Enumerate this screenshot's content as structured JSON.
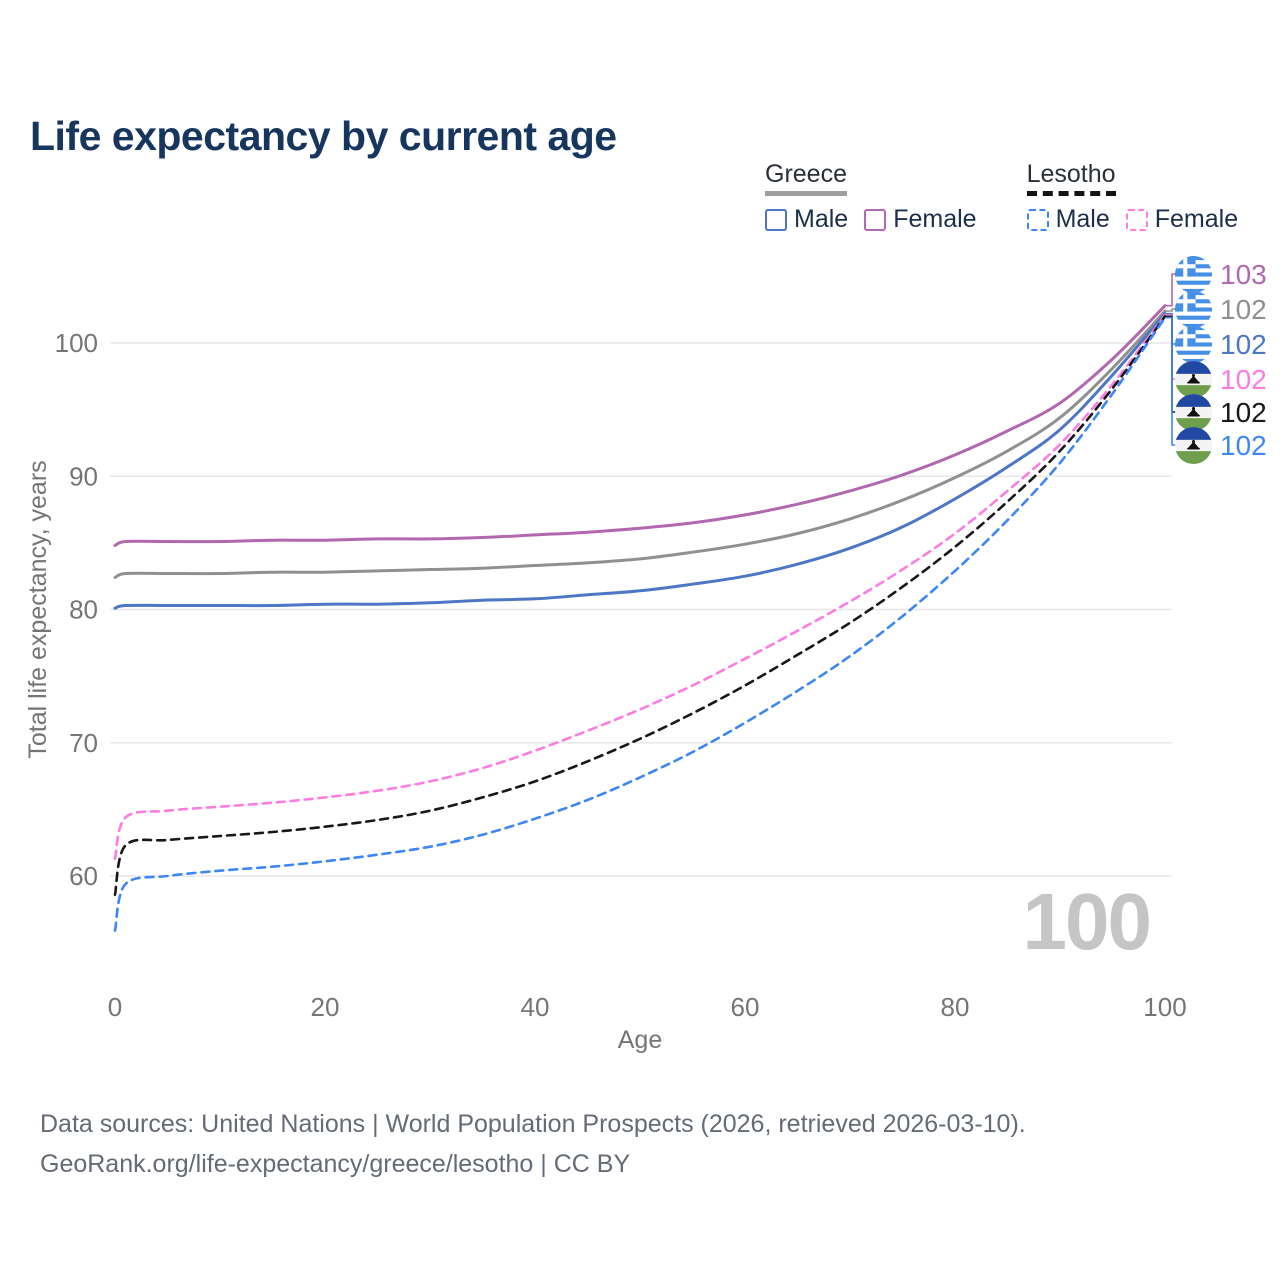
{
  "title": "Life expectancy by current age",
  "legend": {
    "groups": [
      {
        "name": "Greece",
        "line_style": "solid",
        "underline_color": "#9e9e9e",
        "items": [
          {
            "label": "Male",
            "color": "#4d77c4"
          },
          {
            "label": "Female",
            "color": "#b168ae"
          }
        ]
      },
      {
        "name": "Lesotho",
        "line_style": "dashed",
        "underline_color": "#141414",
        "items": [
          {
            "label": "Male",
            "color": "#3d87f5"
          },
          {
            "label": "Female",
            "color": "#fc7ce0"
          }
        ]
      }
    ]
  },
  "chart_data": {
    "type": "line",
    "title": "Life expectancy by current age",
    "xlabel": "Age",
    "ylabel": "Total life expectancy, years",
    "xlim": [
      0,
      100
    ],
    "ylim": [
      55,
      104
    ],
    "x_ticks": [
      0,
      20,
      40,
      60,
      80,
      100
    ],
    "y_ticks": [
      60,
      70,
      80,
      90,
      100
    ],
    "grid": "horizontal-only",
    "legend_position": "top-right",
    "ages": [
      0,
      1,
      5,
      10,
      15,
      20,
      25,
      30,
      35,
      40,
      45,
      50,
      55,
      60,
      65,
      70,
      75,
      80,
      85,
      90,
      95,
      100
    ],
    "series": [
      {
        "name": "Greece Female",
        "country": "Greece",
        "sex": "Female",
        "flag": "greece",
        "color": "#b168ae",
        "dashed": false,
        "end_label": "103",
        "values": [
          84.8,
          85.1,
          85.1,
          85.1,
          85.2,
          85.2,
          85.3,
          85.3,
          85.4,
          85.6,
          85.8,
          86.1,
          86.5,
          87.1,
          87.9,
          88.9,
          90.1,
          91.6,
          93.4,
          95.5,
          98.8,
          102.8
        ]
      },
      {
        "name": "Greece Both Sexes",
        "country": "Greece",
        "sex": "Both",
        "flag": "greece",
        "color": "#909090",
        "dashed": false,
        "end_label": "102",
        "values": [
          82.4,
          82.7,
          82.7,
          82.7,
          82.8,
          82.8,
          82.9,
          83.0,
          83.1,
          83.3,
          83.5,
          83.8,
          84.3,
          84.9,
          85.7,
          86.8,
          88.2,
          89.9,
          91.9,
          94.4,
          98.1,
          102.4
        ]
      },
      {
        "name": "Greece Male",
        "country": "Greece",
        "sex": "Male",
        "flag": "greece",
        "color": "#4d77c4",
        "dashed": false,
        "end_label": "102",
        "values": [
          80.1,
          80.3,
          80.3,
          80.3,
          80.3,
          80.4,
          80.4,
          80.5,
          80.7,
          80.8,
          81.1,
          81.4,
          81.9,
          82.5,
          83.4,
          84.6,
          86.2,
          88.3,
          90.7,
          93.5,
          97.6,
          102.2
        ]
      },
      {
        "name": "Lesotho Female",
        "country": "Lesotho",
        "sex": "Female",
        "flag": "lesotho",
        "color": "#fc7ce0",
        "dashed": true,
        "end_label": "102",
        "values": [
          61.3,
          64.4,
          64.9,
          65.2,
          65.5,
          65.9,
          66.4,
          67.1,
          68.1,
          69.4,
          70.9,
          72.5,
          74.3,
          76.3,
          78.4,
          80.6,
          83.0,
          85.7,
          88.9,
          92.4,
          96.9,
          102.1
        ]
      },
      {
        "name": "Lesotho Both Sexes",
        "country": "Lesotho",
        "sex": "Both",
        "flag": "lesotho",
        "color": "#181818",
        "dashed": true,
        "end_label": "102",
        "values": [
          58.6,
          62.3,
          62.7,
          63.0,
          63.3,
          63.7,
          64.2,
          64.9,
          65.9,
          67.1,
          68.6,
          70.3,
          72.2,
          74.3,
          76.6,
          79.0,
          81.7,
          84.7,
          88.1,
          91.9,
          96.6,
          102.0
        ]
      },
      {
        "name": "Lesotho Male",
        "country": "Lesotho",
        "sex": "Male",
        "flag": "lesotho",
        "color": "#3d87f5",
        "dashed": true,
        "end_label": "102",
        "values": [
          55.9,
          59.4,
          60.0,
          60.4,
          60.7,
          61.1,
          61.6,
          62.2,
          63.1,
          64.3,
          65.7,
          67.4,
          69.3,
          71.5,
          73.9,
          76.5,
          79.5,
          82.9,
          86.7,
          91.0,
          96.2,
          101.9
        ]
      }
    ]
  },
  "watermark": {
    "text": "100"
  },
  "footer": {
    "line1": "Data sources: United Nations | World Population Prospects (2026, retrieved 2026-03-10).",
    "line2": "GeoRank.org/life-expectancy/greece/lesotho | CC BY"
  },
  "colors": {
    "title": "#17365e",
    "tick_text": "#757575",
    "gridline": "#e7e7e7",
    "watermark": "#c5c5c5",
    "footer": "#646b75",
    "greece_flag_blue": "#4590e6",
    "lesotho_flag_blue": "#2149a3",
    "lesotho_flag_green": "#6f9e4c"
  }
}
